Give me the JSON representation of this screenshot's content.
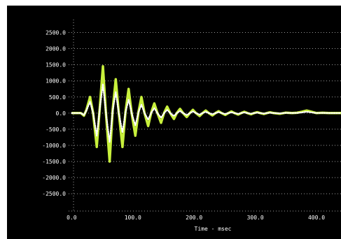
{
  "chart_data": {
    "type": "line",
    "title": "",
    "xlabel": "Time - msec",
    "ylabel": "",
    "xlim": [
      -5,
      440
    ],
    "ylim": [
      -2950,
      2900
    ],
    "x_ticks": [
      0,
      100,
      200,
      300,
      400
    ],
    "x_tick_labels": [
      "0.0",
      "100.0",
      "200.0",
      "300.0",
      "400.0"
    ],
    "y_ticks": [
      2500,
      2000,
      1500,
      1000,
      500,
      0,
      -500,
      -1000,
      -1500,
      -2000,
      -2500
    ],
    "y_tick_labels": [
      "2500.0",
      "2000.0",
      "1500.0",
      "1000.0",
      "500.0",
      "0.0",
      "-500.0",
      "-1000.0",
      "-1500.0",
      "-2000.0",
      "-2500.0"
    ],
    "grid": true,
    "grid_style": "dotted",
    "background": "#000000",
    "series": [
      {
        "color": "#c8f03c",
        "style": "solid",
        "x": [
          0,
          15,
          20,
          24,
          30,
          35,
          41,
          46,
          51,
          56,
          62,
          67,
          72,
          77,
          83,
          88,
          93,
          98,
          104,
          109,
          114,
          119,
          125,
          130,
          135,
          140,
          146,
          151,
          156,
          161,
          167,
          172,
          177,
          182,
          188,
          193,
          198,
          203,
          209,
          214,
          219,
          224,
          230,
          235,
          240,
          245,
          251,
          256,
          261,
          266,
          272,
          277,
          282,
          287,
          293,
          298,
          303,
          308,
          314,
          319,
          324,
          330,
          340,
          350,
          360,
          368,
          376,
          384,
          392,
          400,
          410,
          420,
          430,
          440
        ],
        "y": [
          0,
          0,
          -80,
          100,
          500,
          0,
          -1050,
          200,
          1450,
          0,
          -1500,
          100,
          1050,
          0,
          -1050,
          50,
          750,
          0,
          -700,
          30,
          500,
          0,
          -400,
          20,
          300,
          0,
          -300,
          10,
          200,
          0,
          -180,
          10,
          130,
          0,
          -120,
          0,
          100,
          0,
          -90,
          0,
          80,
          0,
          -70,
          0,
          60,
          0,
          -55,
          0,
          50,
          0,
          -45,
          0,
          40,
          0,
          -35,
          0,
          30,
          0,
          -28,
          0,
          25,
          0,
          -20,
          15,
          0,
          10,
          40,
          80,
          40,
          0,
          10,
          0,
          0,
          0
        ]
      },
      {
        "color": "#ffffff",
        "style": "dotted",
        "x": [
          0,
          15,
          20,
          24,
          30,
          35,
          41,
          46,
          51,
          56,
          62,
          67,
          72,
          77,
          83,
          88,
          93,
          98,
          104,
          109,
          114,
          119,
          125,
          130,
          135,
          140,
          146,
          151,
          156,
          161,
          167,
          172,
          177,
          182,
          188,
          193,
          198,
          203,
          209,
          214,
          219,
          224,
          230,
          235,
          240,
          245,
          251,
          256,
          261,
          266,
          272,
          277,
          282,
          287,
          293,
          298,
          303,
          308,
          314,
          319,
          324,
          330,
          340,
          350,
          360,
          368,
          376,
          384,
          392,
          400,
          410,
          420,
          430,
          440
        ],
        "y": [
          0,
          0,
          -60,
          80,
          350,
          0,
          -700,
          150,
          900,
          0,
          -900,
          60,
          650,
          0,
          -600,
          30,
          420,
          0,
          -380,
          20,
          260,
          0,
          -200,
          10,
          150,
          0,
          -140,
          0,
          100,
          0,
          -90,
          0,
          65,
          0,
          -60,
          0,
          50,
          0,
          -45,
          0,
          40,
          0,
          -35,
          0,
          30,
          0,
          -28,
          0,
          25,
          0,
          -22,
          0,
          20,
          0,
          -18,
          0,
          15,
          0,
          -14,
          0,
          12,
          0,
          -10,
          8,
          0,
          5,
          20,
          40,
          20,
          0,
          5,
          0,
          0,
          0
        ]
      }
    ]
  }
}
